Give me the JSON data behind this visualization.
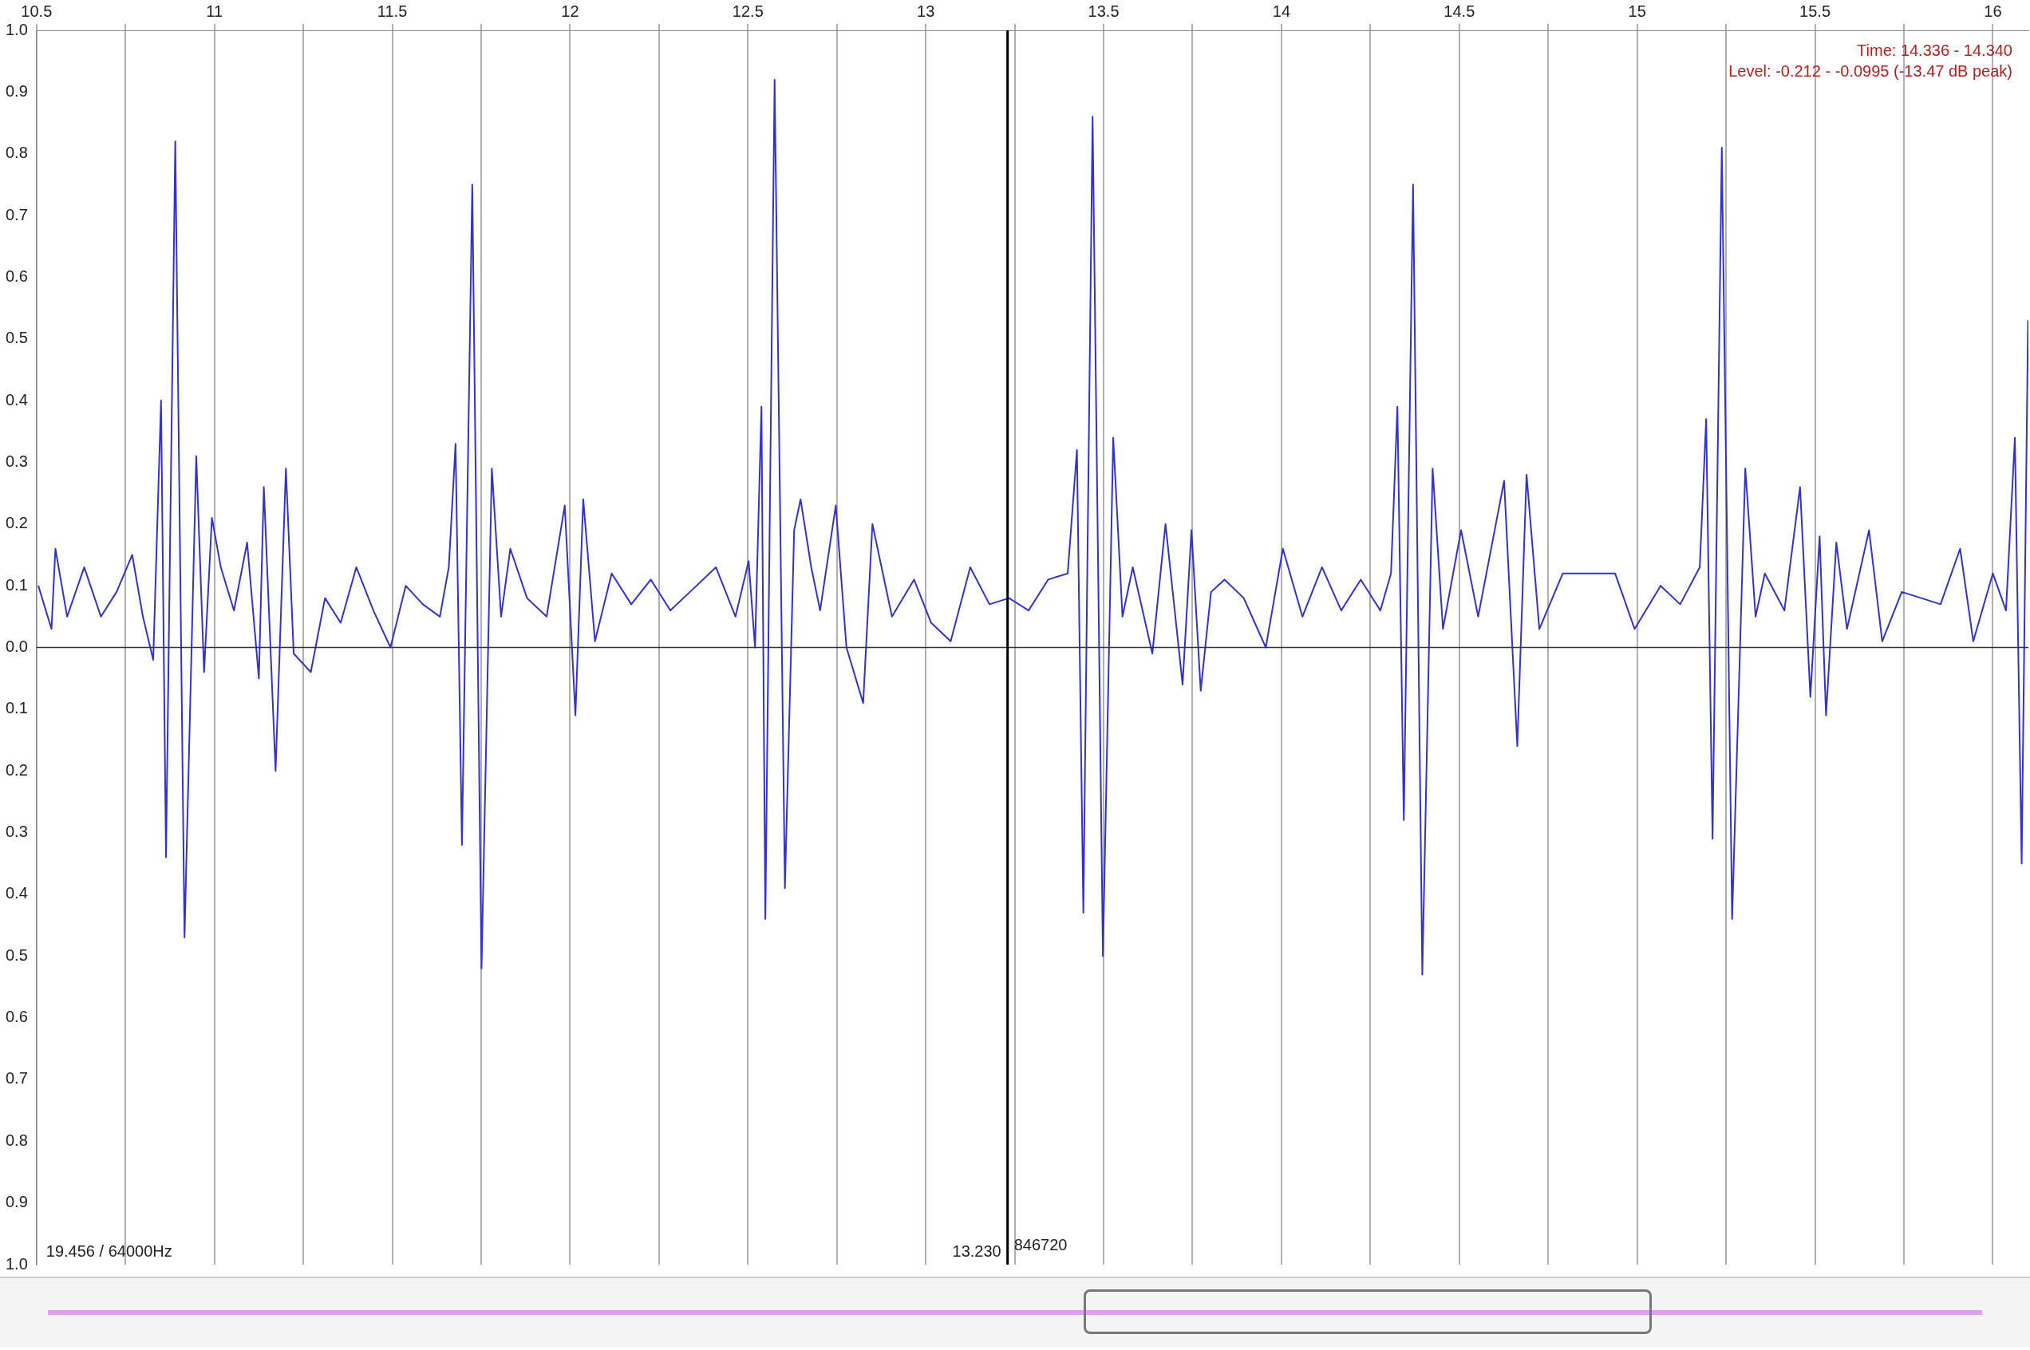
{
  "chart_data": {
    "type": "line",
    "xlim": [
      10.5,
      16.1
    ],
    "ylim": [
      -1.0,
      1.0
    ],
    "xticks": [
      10.5,
      {
        "value": 10.75,
        "label": null
      },
      11,
      {
        "value": 11.25,
        "label": null
      },
      11.5,
      {
        "value": 11.75,
        "label": null
      },
      12,
      {
        "value": 12.25,
        "label": null
      },
      12.5,
      {
        "value": 12.75,
        "label": null
      },
      13,
      {
        "value": 13.25,
        "label": null
      },
      13.5,
      {
        "value": 13.75,
        "label": null
      },
      14,
      {
        "value": 14.25,
        "label": null
      },
      14.5,
      {
        "value": 14.75,
        "label": null
      },
      15,
      {
        "value": 15.25,
        "label": null
      },
      15.5,
      {
        "value": 15.75,
        "label": null
      },
      16
    ],
    "yticks": [
      {
        "value": 1.0,
        "label": "1.0"
      },
      0.9,
      0.8,
      0.7,
      0.6,
      0.5,
      0.4,
      0.3,
      0.2,
      0.1,
      {
        "value": 0.0,
        "label": "0.0"
      },
      {
        "value": -0.1,
        "label": "0.1"
      },
      {
        "value": -0.2,
        "label": "0.2"
      },
      {
        "value": -0.3,
        "label": "0.3"
      },
      {
        "value": -0.4,
        "label": "0.4"
      },
      {
        "value": -0.5,
        "label": "0.5"
      },
      {
        "value": -0.6,
        "label": "0.6"
      },
      {
        "value": -0.7,
        "label": "0.7"
      },
      {
        "value": -0.8,
        "label": "0.8"
      },
      {
        "value": -0.9,
        "label": "0.9"
      },
      {
        "value": -1.0,
        "label": "1.0"
      }
    ],
    "grid": "x",
    "marker": "none",
    "line_style": "solid",
    "legend": false,
    "ref_lines": [
      {
        "axis": "y",
        "value": 0,
        "color": "#333333"
      },
      {
        "axis": "x",
        "value": 13.23,
        "label": "13.230",
        "color": "#000000"
      }
    ],
    "annotations": [
      "Time: 14.336 - 14.340",
      "Level: -0.212 - -0.0995 (-13.47 dB peak)",
      "19.456 / 64000Hz",
      {
        "text": "846720",
        "x": 13.23,
        "y": -0.97
      }
    ],
    "series": [
      {
        "color": "#3333cc",
        "x": [
          10.505,
          10.542,
          10.553,
          10.586,
          10.634,
          10.681,
          10.725,
          10.769,
          10.799,
          10.828,
          10.85,
          10.864,
          10.89,
          10.916,
          10.949,
          10.971,
          10.993,
          11.018,
          11.055,
          11.092,
          11.125,
          11.139,
          11.172,
          11.201,
          11.223,
          11.271,
          11.311,
          11.355,
          11.399,
          11.447,
          11.495,
          11.538,
          11.586,
          11.634,
          11.659,
          11.678,
          11.696,
          11.725,
          11.751,
          11.78,
          11.806,
          11.832,
          11.879,
          11.934,
          11.985,
          12.015,
          12.037,
          12.07,
          12.117,
          12.172,
          12.227,
          12.282,
          12.337,
          12.41,
          12.465,
          12.502,
          12.52,
          12.538,
          12.549,
          12.575,
          12.604,
          12.63,
          12.648,
          12.678,
          12.703,
          12.747,
          12.777,
          12.824,
          12.85,
          12.905,
          12.967,
          13.015,
          13.07,
          13.125,
          13.179,
          13.234,
          13.289,
          13.344,
          13.399,
          13.425,
          13.443,
          13.469,
          13.498,
          13.527,
          13.553,
          13.582,
          13.637,
          13.674,
          13.722,
          13.747,
          13.773,
          13.802,
          13.84,
          13.894,
          13.956,
          14.004,
          14.059,
          14.114,
          14.168,
          14.223,
          14.278,
          14.308,
          14.326,
          14.344,
          14.37,
          14.396,
          14.425,
          14.454,
          14.505,
          14.553,
          14.626,
          14.663,
          14.689,
          14.725,
          14.791,
          14.865,
          14.938,
          14.993,
          15.066,
          15.121,
          15.176,
          15.194,
          15.212,
          15.238,
          15.267,
          15.304,
          15.333,
          15.359,
          15.414,
          15.458,
          15.487,
          15.513,
          15.531,
          15.56,
          15.59,
          15.652,
          15.689,
          15.744,
          15.799,
          15.853,
          15.908,
          15.945,
          16.0,
          16.037,
          16.062,
          16.081,
          16.099
        ],
        "values": [
          0.1,
          0.03,
          0.16,
          0.05,
          0.13,
          0.05,
          0.09,
          0.15,
          0.05,
          -0.02,
          0.4,
          -0.34,
          0.82,
          -0.47,
          0.31,
          -0.04,
          0.21,
          0.13,
          0.06,
          0.17,
          -0.05,
          0.26,
          -0.2,
          0.29,
          -0.01,
          -0.04,
          0.08,
          0.04,
          0.13,
          0.06,
          0.0,
          0.1,
          0.07,
          0.05,
          0.13,
          0.33,
          -0.32,
          0.75,
          -0.52,
          0.29,
          0.05,
          0.16,
          0.08,
          0.05,
          0.23,
          -0.11,
          0.24,
          0.01,
          0.12,
          0.07,
          0.11,
          0.06,
          0.09,
          0.13,
          0.05,
          0.14,
          0.0,
          0.39,
          -0.44,
          0.92,
          -0.39,
          0.19,
          0.24,
          0.13,
          0.06,
          0.23,
          0.0,
          -0.09,
          0.2,
          0.05,
          0.11,
          0.04,
          0.01,
          0.13,
          0.07,
          0.08,
          0.06,
          0.11,
          0.12,
          0.32,
          -0.43,
          0.86,
          -0.5,
          0.34,
          0.05,
          0.13,
          -0.01,
          0.2,
          -0.06,
          0.19,
          -0.07,
          0.09,
          0.11,
          0.08,
          0.0,
          0.16,
          0.05,
          0.13,
          0.06,
          0.11,
          0.06,
          0.12,
          0.39,
          -0.28,
          0.75,
          -0.53,
          0.29,
          0.03,
          0.19,
          0.05,
          0.27,
          -0.16,
          0.28,
          0.03,
          0.12,
          0.12,
          0.12,
          0.03,
          0.1,
          0.07,
          0.13,
          0.37,
          -0.31,
          0.81,
          -0.44,
          0.29,
          0.05,
          0.12,
          0.06,
          0.26,
          -0.08,
          0.18,
          -0.11,
          0.17,
          0.03,
          0.19,
          0.01,
          0.09,
          0.08,
          0.07,
          0.16,
          0.01,
          0.12,
          0.06,
          0.34,
          -0.35,
          0.53
        ]
      }
    ]
  }
}
